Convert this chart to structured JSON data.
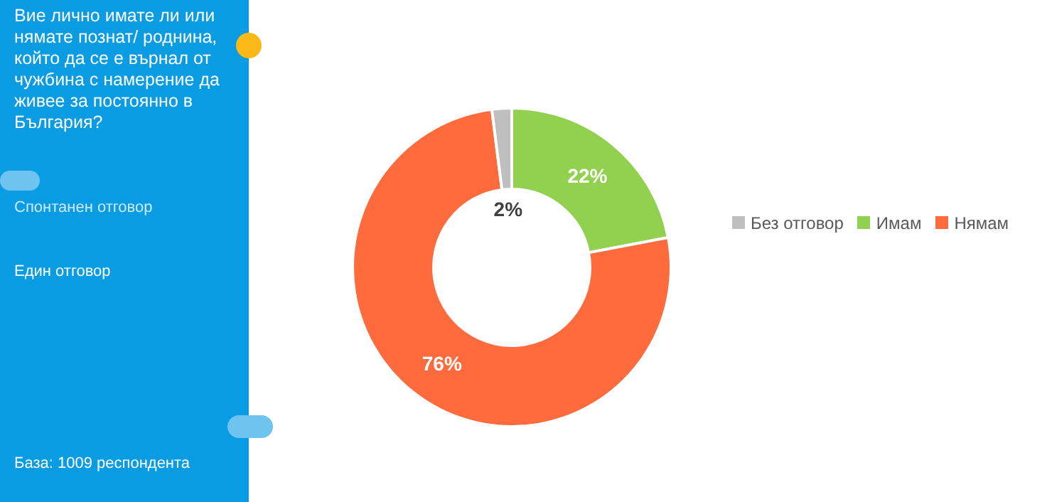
{
  "chart_data": {
    "type": "donut",
    "title": "Вие лично имате ли или нямате познат/ роднина, който да се е върнал от чужбина с намерение да живее за постоянно в България?",
    "annotations": [
      "Спонтанен отговор",
      "Един отговор",
      "База: 1009 респондента"
    ],
    "categories": [
      "Имам",
      "Нямам",
      "Без отговор"
    ],
    "values": [
      22,
      76,
      2
    ],
    "colors": [
      "#92d050",
      "#ff6b3d",
      "#bfbfbf"
    ],
    "value_labels": [
      "22%",
      "76%",
      "2%"
    ],
    "legend": "right"
  }
}
